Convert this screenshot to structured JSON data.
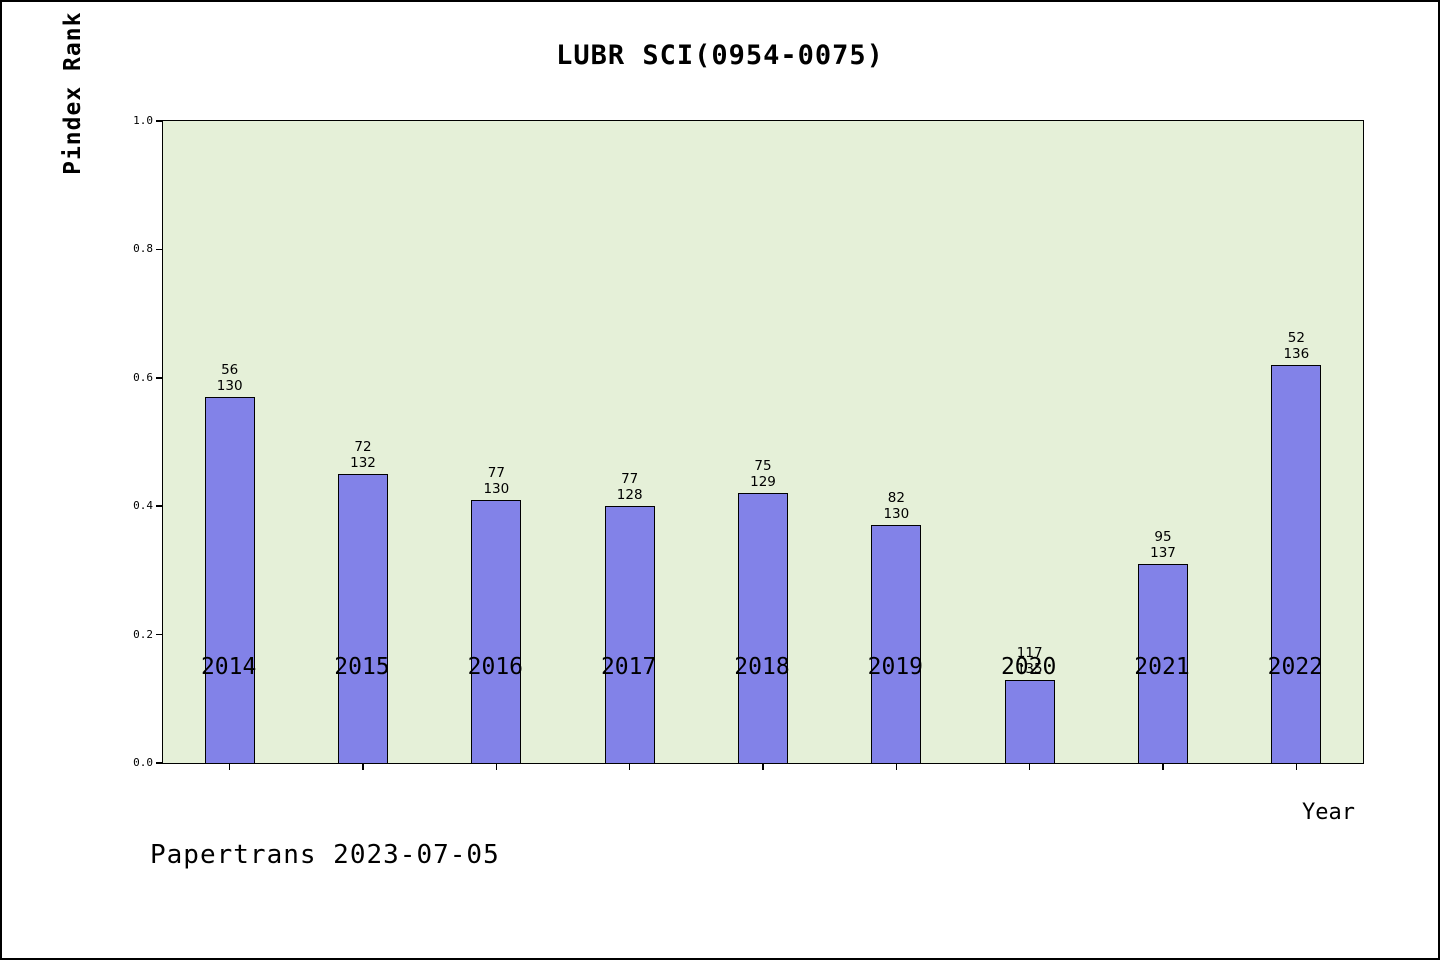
{
  "title": "LUBR SCI(0954-0075)",
  "footer": "Papertrans 2023-07-05",
  "chart_data": {
    "type": "bar",
    "title": "LUBR SCI(0954-0075)",
    "xlabel": "Year",
    "ylabel": "Pindex Rank in ENGINEERING, MECHANICAL",
    "ylim": [
      0.0,
      1.0
    ],
    "yticks": [
      "0.0",
      "0.2",
      "0.4",
      "0.6",
      "0.8",
      "1.0"
    ],
    "grid": false,
    "legend": "none",
    "categories": [
      "2014",
      "2015",
      "2016",
      "2017",
      "2018",
      "2019",
      "2020",
      "2021",
      "2022"
    ],
    "values": [
      0.57,
      0.45,
      0.41,
      0.4,
      0.42,
      0.37,
      0.13,
      0.31,
      0.62
    ],
    "bar_label_rank": [
      "56",
      "72",
      "77",
      "77",
      "75",
      "82",
      "117",
      "95",
      "52"
    ],
    "bar_label_total": [
      "130",
      "132",
      "130",
      "128",
      "129",
      "130",
      "135",
      "137",
      "136"
    ],
    "colors": {
      "bar_fill": "#8282e8",
      "bar_border": "#000000",
      "plot_background": "#e5f0d8",
      "page_background": "#ffffff",
      "text": "#000000"
    }
  }
}
